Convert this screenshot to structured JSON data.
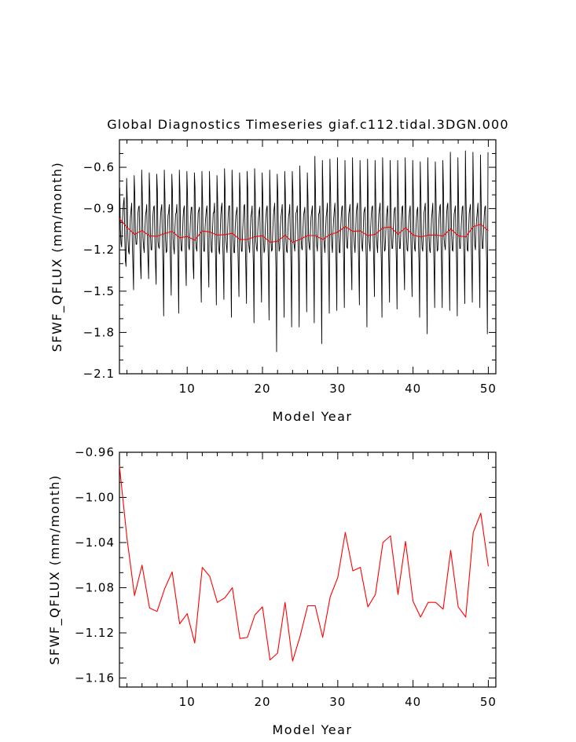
{
  "title": "Global Diagnostics Timeseries giaf.c112.tidal.3DGN.000",
  "chart_data": [
    {
      "type": "line",
      "xlabel": "Model Year",
      "ylabel": "SFWF_QFLUX (mm/month)",
      "xlim": [
        1,
        51
      ],
      "ylim": [
        -2.1,
        -0.4
      ],
      "xticks": [
        "10",
        "20",
        "30",
        "40",
        "50"
      ],
      "yticks": [
        "-0.6",
        "-0.9",
        "-1.2",
        "-1.5",
        "-1.8",
        "-2.1"
      ],
      "series": [
        {
          "color": "#000000",
          "note_values": "monthly values, 12 per model year",
          "values": [
            -0.75,
            -1.05,
            -1.15,
            -1.18,
            -1.02,
            -0.92,
            -0.86,
            -0.82,
            -1.12,
            -1.28,
            -1.32,
            -0.68,
            -0.84,
            -1.12,
            -1.21,
            -1.23,
            -1.08,
            -0.96,
            -0.91,
            -0.86,
            -1.15,
            -1.31,
            -1.49,
            -0.66,
            -0.79,
            -1.09,
            -1.16,
            -1.16,
            -1.07,
            -0.93,
            -0.89,
            -0.88,
            -1.13,
            -1.31,
            -1.41,
            -0.62,
            -0.81,
            -1.11,
            -1.18,
            -1.22,
            -1.06,
            -0.95,
            -0.92,
            -0.87,
            -1.14,
            -1.27,
            -1.41,
            -0.64,
            -0.79,
            -1.11,
            -1.2,
            -1.2,
            -1.07,
            -0.94,
            -0.89,
            -0.88,
            -1.14,
            -1.31,
            -1.45,
            -0.65,
            -0.77,
            -1.14,
            -1.18,
            -1.19,
            -1.07,
            -0.95,
            -0.9,
            -0.87,
            -1.15,
            -1.34,
            -1.68,
            -0.62,
            -0.8,
            -1.13,
            -1.22,
            -1.21,
            -1.05,
            -0.95,
            -0.92,
            -0.87,
            -1.14,
            -1.33,
            -1.53,
            -0.65,
            -0.77,
            -1.12,
            -1.19,
            -1.23,
            -1.04,
            -0.94,
            -0.93,
            -0.87,
            -1.11,
            -1.33,
            -1.66,
            -0.62,
            -0.78,
            -1.11,
            -1.2,
            -1.21,
            -1.09,
            -0.96,
            -0.9,
            -0.88,
            -1.13,
            -1.31,
            -1.46,
            -0.63,
            -0.8,
            -1.11,
            -1.18,
            -1.2,
            -1.07,
            -0.95,
            -0.89,
            -0.89,
            -1.13,
            -1.32,
            -1.41,
            -0.64,
            -0.75,
            -1.13,
            -1.19,
            -1.21,
            -1.06,
            -0.93,
            -0.91,
            -0.89,
            -1.12,
            -1.34,
            -1.58,
            -0.63,
            -0.83,
            -1.13,
            -1.21,
            -1.21,
            -1.04,
            -0.96,
            -0.91,
            -0.88,
            -1.11,
            -1.29,
            -1.47,
            -0.63,
            -0.82,
            -1.1,
            -1.21,
            -1.22,
            -1.05,
            -0.93,
            -0.93,
            -0.86,
            -1.12,
            -1.3,
            -1.6,
            -0.66,
            -0.83,
            -1.11,
            -1.2,
            -1.23,
            -1.09,
            -0.95,
            -0.89,
            -0.86,
            -1.11,
            -1.31,
            -1.56,
            -0.61,
            -0.77,
            -1.11,
            -1.17,
            -1.22,
            -1.06,
            -0.94,
            -0.88,
            -0.88,
            -1.11,
            -1.31,
            -1.69,
            -0.62,
            -0.8,
            -1.12,
            -1.22,
            -1.22,
            -1.04,
            -0.95,
            -0.92,
            -0.89,
            -1.13,
            -1.33,
            -1.54,
            -0.64,
            -0.79,
            -1.11,
            -1.21,
            -1.21,
            -1.05,
            -0.97,
            -0.88,
            -0.87,
            -1.14,
            -1.34,
            -1.59,
            -0.63,
            -0.75,
            -1.13,
            -1.18,
            -1.22,
            -1.08,
            -0.96,
            -0.93,
            -0.88,
            -1.14,
            -1.31,
            -1.73,
            -0.61,
            -0.79,
            -1.14,
            -1.19,
            -1.21,
            -1.06,
            -0.97,
            -0.92,
            -0.89,
            -1.12,
            -1.35,
            -1.58,
            -0.64,
            -0.8,
            -1.12,
            -1.22,
            -1.2,
            -1.05,
            -0.96,
            -0.9,
            -0.88,
            -1.13,
            -1.3,
            -1.71,
            -0.62,
            -0.84,
            -1.13,
            -1.21,
            -1.2,
            -1.05,
            -0.95,
            -0.9,
            -0.86,
            -1.14,
            -1.33,
            -1.94,
            -0.65,
            -0.78,
            -1.11,
            -1.21,
            -1.19,
            -1.04,
            -0.96,
            -0.92,
            -0.87,
            -1.14,
            -1.31,
            -1.69,
            -0.63,
            -0.79,
            -1.13,
            -1.21,
            -1.22,
            -1.07,
            -0.96,
            -0.93,
            -0.87,
            -1.12,
            -1.33,
            -1.76,
            -0.63,
            -0.77,
            -1.13,
            -1.17,
            -1.21,
            -1.05,
            -0.93,
            -0.92,
            -0.88,
            -1.12,
            -1.3,
            -1.76,
            -0.59,
            -0.8,
            -1.11,
            -1.19,
            -1.2,
            -1.06,
            -0.95,
            -0.92,
            -0.89,
            -1.14,
            -1.29,
            -1.65,
            -0.64,
            -0.82,
            -1.13,
            -1.18,
            -1.2,
            -1.06,
            -0.96,
            -0.92,
            -0.88,
            -1.13,
            -1.3,
            -1.73,
            -0.52,
            -0.78,
            -1.09,
            -1.17,
            -1.21,
            -1.09,
            -0.94,
            -0.93,
            -0.88,
            -1.13,
            -1.31,
            -1.88,
            -0.55,
            -0.79,
            -1.1,
            -1.16,
            -1.22,
            -1.08,
            -0.96,
            -0.92,
            -0.86,
            -1.14,
            -1.32,
            -1.66,
            -0.54,
            -0.77,
            -1.09,
            -1.17,
            -1.22,
            -1.06,
            -0.97,
            -0.91,
            -0.86,
            -1.12,
            -1.31,
            -1.64,
            -0.53,
            -0.83,
            -1.1,
            -1.22,
            -1.22,
            -1.06,
            -0.96,
            -0.89,
            -0.88,
            -1.11,
            -1.29,
            -1.62,
            -0.55,
            -0.84,
            -1.1,
            -1.18,
            -1.19,
            -1.07,
            -0.94,
            -0.91,
            -0.87,
            -1.11,
            -1.29,
            -1.49,
            -0.53,
            -0.79,
            -1.09,
            -1.17,
            -1.22,
            -1.09,
            -0.93,
            -0.89,
            -0.86,
            -1.13,
            -1.32,
            -1.6,
            -0.55,
            -0.8,
            -1.09,
            -1.18,
            -1.21,
            -1.08,
            -0.93,
            -0.91,
            -0.89,
            -1.11,
            -1.28,
            -1.76,
            -0.54,
            -0.8,
            -1.12,
            -1.17,
            -1.21,
            -1.04,
            -0.94,
            -0.89,
            -0.88,
            -1.13,
            -1.31,
            -1.54,
            -0.55,
            -0.82,
            -1.09,
            -1.17,
            -1.22,
            -1.05,
            -0.94,
            -0.9,
            -0.86,
            -1.12,
            -1.29,
            -1.69,
            -0.53,
            -0.76,
            -1.09,
            -1.21,
            -1.2,
            -1.08,
            -0.96,
            -0.91,
            -0.88,
            -1.11,
            -1.32,
            -1.58,
            -0.55,
            -0.79,
            -1.1,
            -1.19,
            -1.19,
            -1.06,
            -0.94,
            -0.9,
            -0.89,
            -1.12,
            -1.29,
            -1.63,
            -0.55,
            -0.81,
            -1.08,
            -1.19,
            -1.19,
            -1.08,
            -0.96,
            -0.89,
            -0.88,
            -1.13,
            -1.31,
            -1.49,
            -0.53,
            -0.8,
            -1.1,
            -1.2,
            -1.21,
            -1.07,
            -0.97,
            -0.91,
            -0.88,
            -1.12,
            -1.31,
            -1.54,
            -0.55,
            -0.8,
            -1.1,
            -1.19,
            -1.21,
            -1.06,
            -0.96,
            -0.91,
            -0.89,
            -1.14,
            -1.29,
            -1.69,
            -0.56,
            -0.8,
            -1.1,
            -1.19,
            -1.21,
            -1.07,
            -0.93,
            -0.9,
            -0.86,
            -1.12,
            -1.29,
            -1.81,
            -0.53,
            -0.77,
            -1.1,
            -1.2,
            -1.22,
            -1.08,
            -0.97,
            -0.92,
            -0.86,
            -1.14,
            -1.33,
            -1.62,
            -0.56,
            -0.78,
            -1.09,
            -1.21,
            -1.2,
            -1.07,
            -0.96,
            -0.89,
            -0.87,
            -1.13,
            -1.33,
            -1.62,
            -0.55,
            -0.76,
            -1.12,
            -1.17,
            -1.2,
            -1.07,
            -0.94,
            -0.88,
            -0.86,
            -1.12,
            -1.3,
            -1.64,
            -0.49,
            -0.81,
            -1.09,
            -1.2,
            -1.21,
            -1.08,
            -0.94,
            -0.91,
            -0.88,
            -1.12,
            -1.3,
            -1.68,
            -0.53,
            -0.82,
            -1.11,
            -1.19,
            -1.19,
            -1.06,
            -0.97,
            -0.89,
            -0.88,
            -1.14,
            -1.32,
            -1.59,
            -0.48,
            -0.84,
            -1.08,
            -1.2,
            -1.21,
            -1.07,
            -0.94,
            -0.9,
            -0.87,
            -1.12,
            -1.3,
            -1.58,
            -0.49,
            -0.82,
            -1.08,
            -1.17,
            -1.2,
            -1.04,
            -0.97,
            -0.92,
            -0.86,
            -1.12,
            -1.29,
            -1.62,
            -0.51,
            -0.82,
            -1.09,
            -1.19,
            -1.19,
            -1.05,
            -0.95,
            -0.89,
            -0.88,
            -1.13,
            -1.31,
            -1.81,
            -0.49
          ]
        },
        {
          "color": "#ff0000",
          "note_values": "annual means at model years 1–51",
          "values": [
            -0.972,
            -1.036,
            -1.087,
            -1.06,
            -1.098,
            -1.101,
            -1.081,
            -1.066,
            -1.112,
            -1.103,
            -1.129,
            -1.062,
            -1.07,
            -1.093,
            -1.089,
            -1.08,
            -1.125,
            -1.124,
            -1.104,
            -1.097,
            -1.144,
            -1.138,
            -1.093,
            -1.145,
            -1.123,
            -1.096,
            -1.096,
            -1.124,
            -1.088,
            -1.071,
            -1.031,
            -1.065,
            -1.062,
            -1.097,
            -1.086,
            -1.04,
            -1.034,
            -1.086,
            -1.039,
            -1.092,
            -1.106,
            -1.093,
            -1.093,
            -1.099,
            -1.047,
            -1.097,
            -1.106,
            -1.031,
            -1.014,
            -1.061
          ]
        }
      ]
    },
    {
      "type": "line",
      "xlabel": "Model Year",
      "ylabel": "SFWF_QFLUX (mm/month)",
      "xlim": [
        1,
        51
      ],
      "ylim": [
        -1.168,
        -0.96
      ],
      "xticks": [
        "10",
        "20",
        "30",
        "40",
        "50"
      ],
      "yticks": [
        "-0.96",
        "-1.00",
        "-1.04",
        "-1.08",
        "-1.12",
        "-1.16"
      ],
      "series": [
        {
          "color": "#ff0000",
          "values": [
            -0.972,
            -1.036,
            -1.087,
            -1.06,
            -1.098,
            -1.101,
            -1.081,
            -1.066,
            -1.112,
            -1.103,
            -1.129,
            -1.062,
            -1.07,
            -1.093,
            -1.089,
            -1.08,
            -1.125,
            -1.124,
            -1.104,
            -1.097,
            -1.144,
            -1.138,
            -1.093,
            -1.145,
            -1.123,
            -1.096,
            -1.096,
            -1.124,
            -1.088,
            -1.071,
            -1.031,
            -1.065,
            -1.062,
            -1.097,
            -1.086,
            -1.04,
            -1.034,
            -1.086,
            -1.039,
            -1.092,
            -1.106,
            -1.093,
            -1.093,
            -1.099,
            -1.047,
            -1.097,
            -1.106,
            -1.031,
            -1.014,
            -1.061
          ]
        }
      ]
    }
  ]
}
